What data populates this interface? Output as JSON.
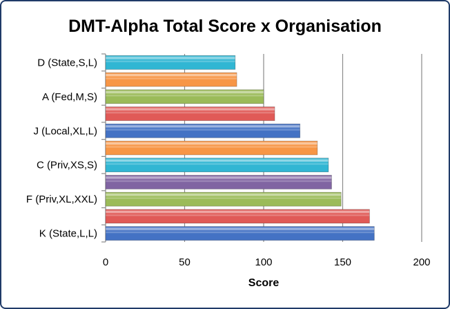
{
  "chart_data": {
    "type": "bar",
    "orientation": "horizontal",
    "title": "DMT-Alpha Total Score x Organisation",
    "xlabel": "Score",
    "ylabel": "",
    "xlim": [
      0,
      200
    ],
    "xticks": [
      0,
      50,
      100,
      150,
      200
    ],
    "grid": "vertical",
    "legend": "none",
    "categories": [
      "K (State,L,L)",
      "",
      "F (Priv,XL,XXL)",
      "",
      "C (Priv,XS,S)",
      "",
      "J (Local,XL,L)",
      "",
      "A (Fed,M,S)",
      "",
      "D (State,S,L)"
    ],
    "values": [
      170,
      167,
      149,
      143,
      141,
      134,
      123,
      107,
      100,
      83,
      82
    ],
    "colors": [
      "#4472c4",
      "#e05a57",
      "#9bbb59",
      "#8064a2",
      "#31b6d3",
      "#f79646",
      "#4472c4",
      "#e05a57",
      "#9bbb59",
      "#f79646",
      "#31b6d3"
    ]
  }
}
